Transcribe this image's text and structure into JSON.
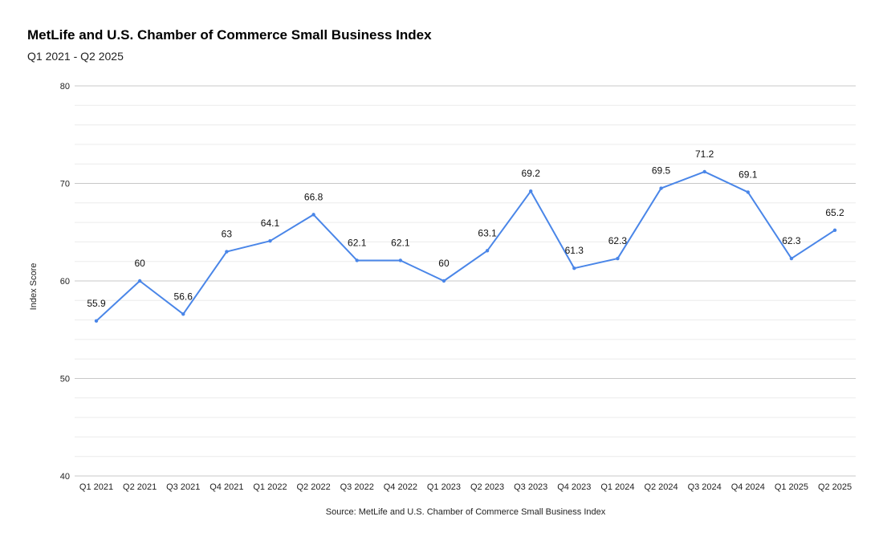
{
  "chart_data": {
    "type": "line",
    "title": "MetLife and U.S. Chamber of Commerce Small Business Index",
    "subtitle": "Q1 2021 - Q2 2025",
    "xlabel": "Source: MetLife and U.S. Chamber of Commerce Small Business Index",
    "ylabel": "Index Score",
    "ylim": [
      40,
      80
    ],
    "yticks": [
      "40",
      "50",
      "60",
      "70",
      "80"
    ],
    "grid": true,
    "categories": [
      "Q1 2021",
      "Q2 2021",
      "Q3 2021",
      "Q4 2021",
      "Q1 2022",
      "Q2 2022",
      "Q3 2022",
      "Q4 2022",
      "Q1 2023",
      "Q2 2023",
      "Q3 2023",
      "Q4 2023",
      "Q1 2024",
      "Q2 2024",
      "Q3 2024",
      "Q4 2024",
      "Q1 2025",
      "Q2 2025"
    ],
    "series": [
      {
        "values": [
          55.9,
          60,
          56.6,
          63,
          64.1,
          66.8,
          62.1,
          62.1,
          60,
          63.1,
          69.2,
          61.3,
          62.3,
          69.5,
          71.2,
          69.1,
          62.3,
          65.2
        ],
        "labels": [
          "55.9",
          "60",
          "56.6",
          "63",
          "64.1",
          "66.8",
          "62.1",
          "62.1",
          "60",
          "63.1",
          "69.2",
          "61.3",
          "62.3",
          "69.5",
          "71.2",
          "69.1",
          "62.3",
          "65.2"
        ],
        "color": "#4a86e8"
      }
    ]
  }
}
